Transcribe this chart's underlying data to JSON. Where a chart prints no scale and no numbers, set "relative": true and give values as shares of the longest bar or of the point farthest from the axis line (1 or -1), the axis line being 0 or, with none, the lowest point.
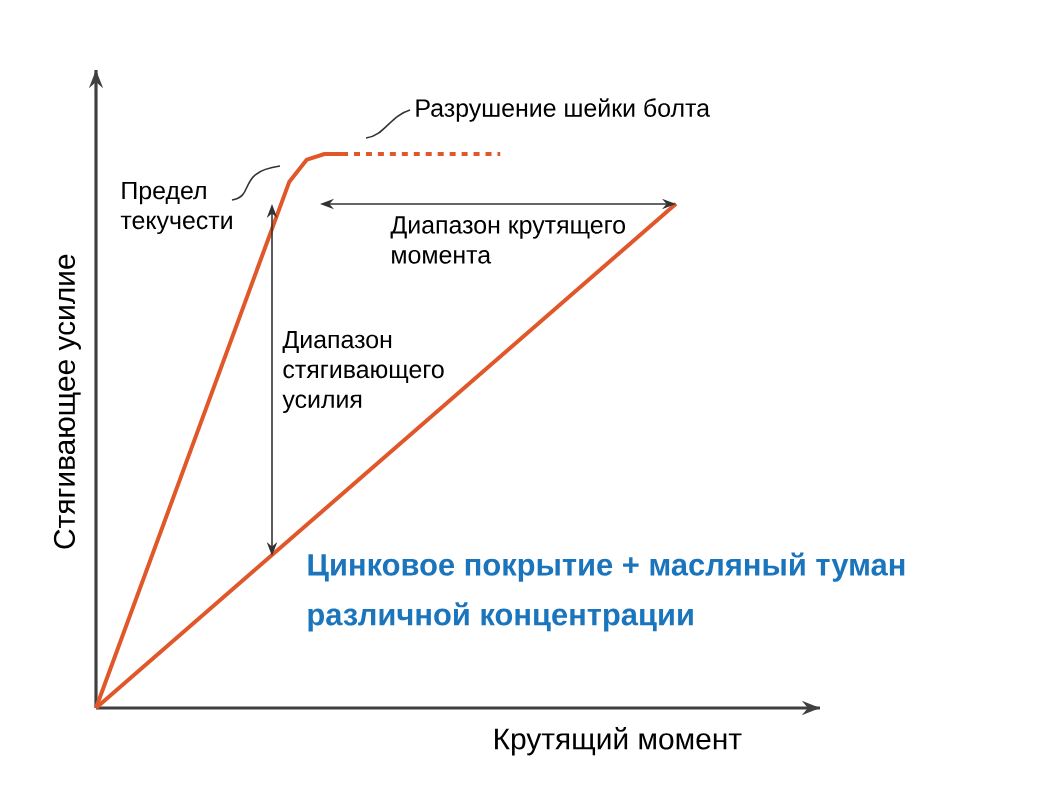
{
  "chart_data": {
    "type": "line",
    "relative": true,
    "xlabel": "Крутящий момент",
    "ylabel": "Стягивающее усилие",
    "marker": "none",
    "annotations": [
      "Разрушение шейки болта",
      "Предел текучести",
      "Диапазон крутящего момента",
      "Диапазон стягивающего усилия",
      "Цинковое покрытие + масляный туман различной концентрации"
    ],
    "categories": [
      null,
      null,
      null,
      null,
      null,
      null,
      null,
      null,
      null,
      null,
      null,
      null,
      null,
      null,
      null,
      null,
      null,
      null,
      null,
      null,
      null,
      null,
      null,
      null,
      null,
      null,
      null,
      null,
      null,
      null,
      null,
      null,
      null,
      null
    ],
    "series": [
      {
        "color": "#e0582a",
        "line_style": "solid",
        "values": [
          0,
          null,
          null,
          null,
          null,
          null,
          null,
          null,
          null,
          null,
          null,
          0.95,
          0.99,
          1.0,
          1.0,
          null,
          null,
          null,
          null,
          null,
          null,
          null,
          null,
          null,
          null,
          null,
          null,
          null,
          null,
          null,
          null,
          null,
          null,
          null
        ]
      },
      {
        "color": "#e0582a",
        "line_style": "dashed",
        "values": [
          null,
          null,
          null,
          null,
          null,
          null,
          null,
          null,
          null,
          null,
          null,
          null,
          null,
          null,
          1.0,
          null,
          null,
          null,
          null,
          null,
          null,
          null,
          null,
          1.0,
          null,
          null,
          null,
          null,
          null,
          null,
          null,
          null,
          null,
          null
        ]
      },
      {
        "color": "#e0582a",
        "line_style": "solid",
        "values": [
          0,
          null,
          null,
          null,
          null,
          null,
          null,
          null,
          null,
          null,
          null,
          null,
          null,
          null,
          null,
          null,
          null,
          null,
          null,
          null,
          null,
          null,
          null,
          null,
          null,
          null,
          null,
          null,
          null,
          null,
          null,
          null,
          null,
          0.91
        ]
      }
    ]
  }
}
